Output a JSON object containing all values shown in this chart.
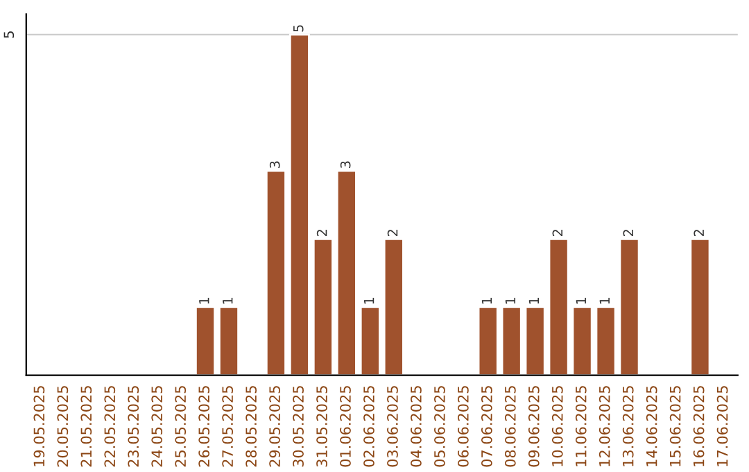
{
  "chart_data": {
    "type": "bar",
    "categories": [
      "19.05.2025",
      "20.05.2025",
      "21.05.2025",
      "22.05.2025",
      "23.05.2025",
      "24.05.2025",
      "25.05.2025",
      "26.05.2025",
      "27.05.2025",
      "28.05.2025",
      "29.05.2025",
      "30.05.2025",
      "31.05.2025",
      "01.06.2025",
      "02.06.2025",
      "03.06.2025",
      "04.06.2025",
      "05.06.2025",
      "06.06.2025",
      "07.06.2025",
      "08.06.2025",
      "09.06.2025",
      "10.06.2025",
      "11.06.2025",
      "12.06.2025",
      "13.06.2025",
      "14.06.2025",
      "15.06.2025",
      "16.06.2025",
      "17.06.2025"
    ],
    "values": [
      null,
      null,
      null,
      null,
      null,
      null,
      null,
      1,
      1,
      null,
      3,
      5,
      2,
      3,
      1,
      2,
      null,
      null,
      null,
      1,
      1,
      1,
      2,
      1,
      1,
      2,
      null,
      null,
      2,
      null
    ],
    "value_labels": [
      null,
      null,
      null,
      null,
      null,
      null,
      null,
      "1",
      "1",
      null,
      "3",
      "5",
      "2",
      "3",
      "1",
      "2",
      null,
      null,
      null,
      "1",
      "1",
      "1",
      "2",
      "1",
      "1",
      "2",
      null,
      null,
      "2",
      null
    ],
    "color": "#a0522d",
    "ylim": [
      0,
      5.3
    ],
    "yticks": [
      5
    ],
    "grid": "y",
    "legend": false
  }
}
